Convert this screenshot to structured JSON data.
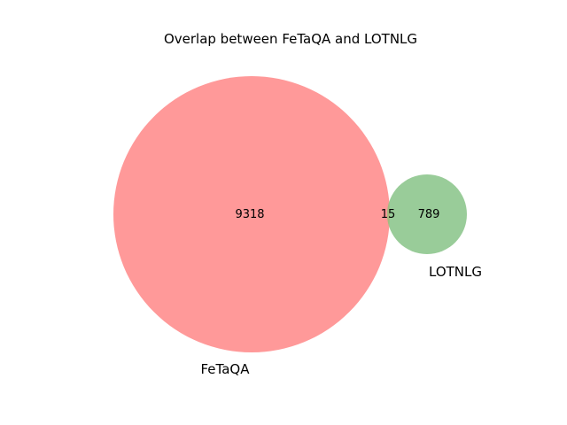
{
  "chart_data": {
    "type": "venn",
    "title": "Overlap between FeTaQA and LOTNLG",
    "sets": [
      {
        "name": "FeTaQA",
        "only_count": 9318,
        "color": "#ff9999"
      },
      {
        "name": "LOTNLG",
        "only_count": 789,
        "color": "#99cc99"
      }
    ],
    "intersection": {
      "sets": [
        "FeTaQA",
        "LOTNLG"
      ],
      "count": 15
    },
    "labels": {
      "fetaqa_only": "9318",
      "lotnlg_only": "789",
      "both": "15"
    },
    "colors": {
      "fetaqa": "#ff9999",
      "lotnlg": "#99cc99",
      "overlap": "#a6b97f"
    }
  }
}
